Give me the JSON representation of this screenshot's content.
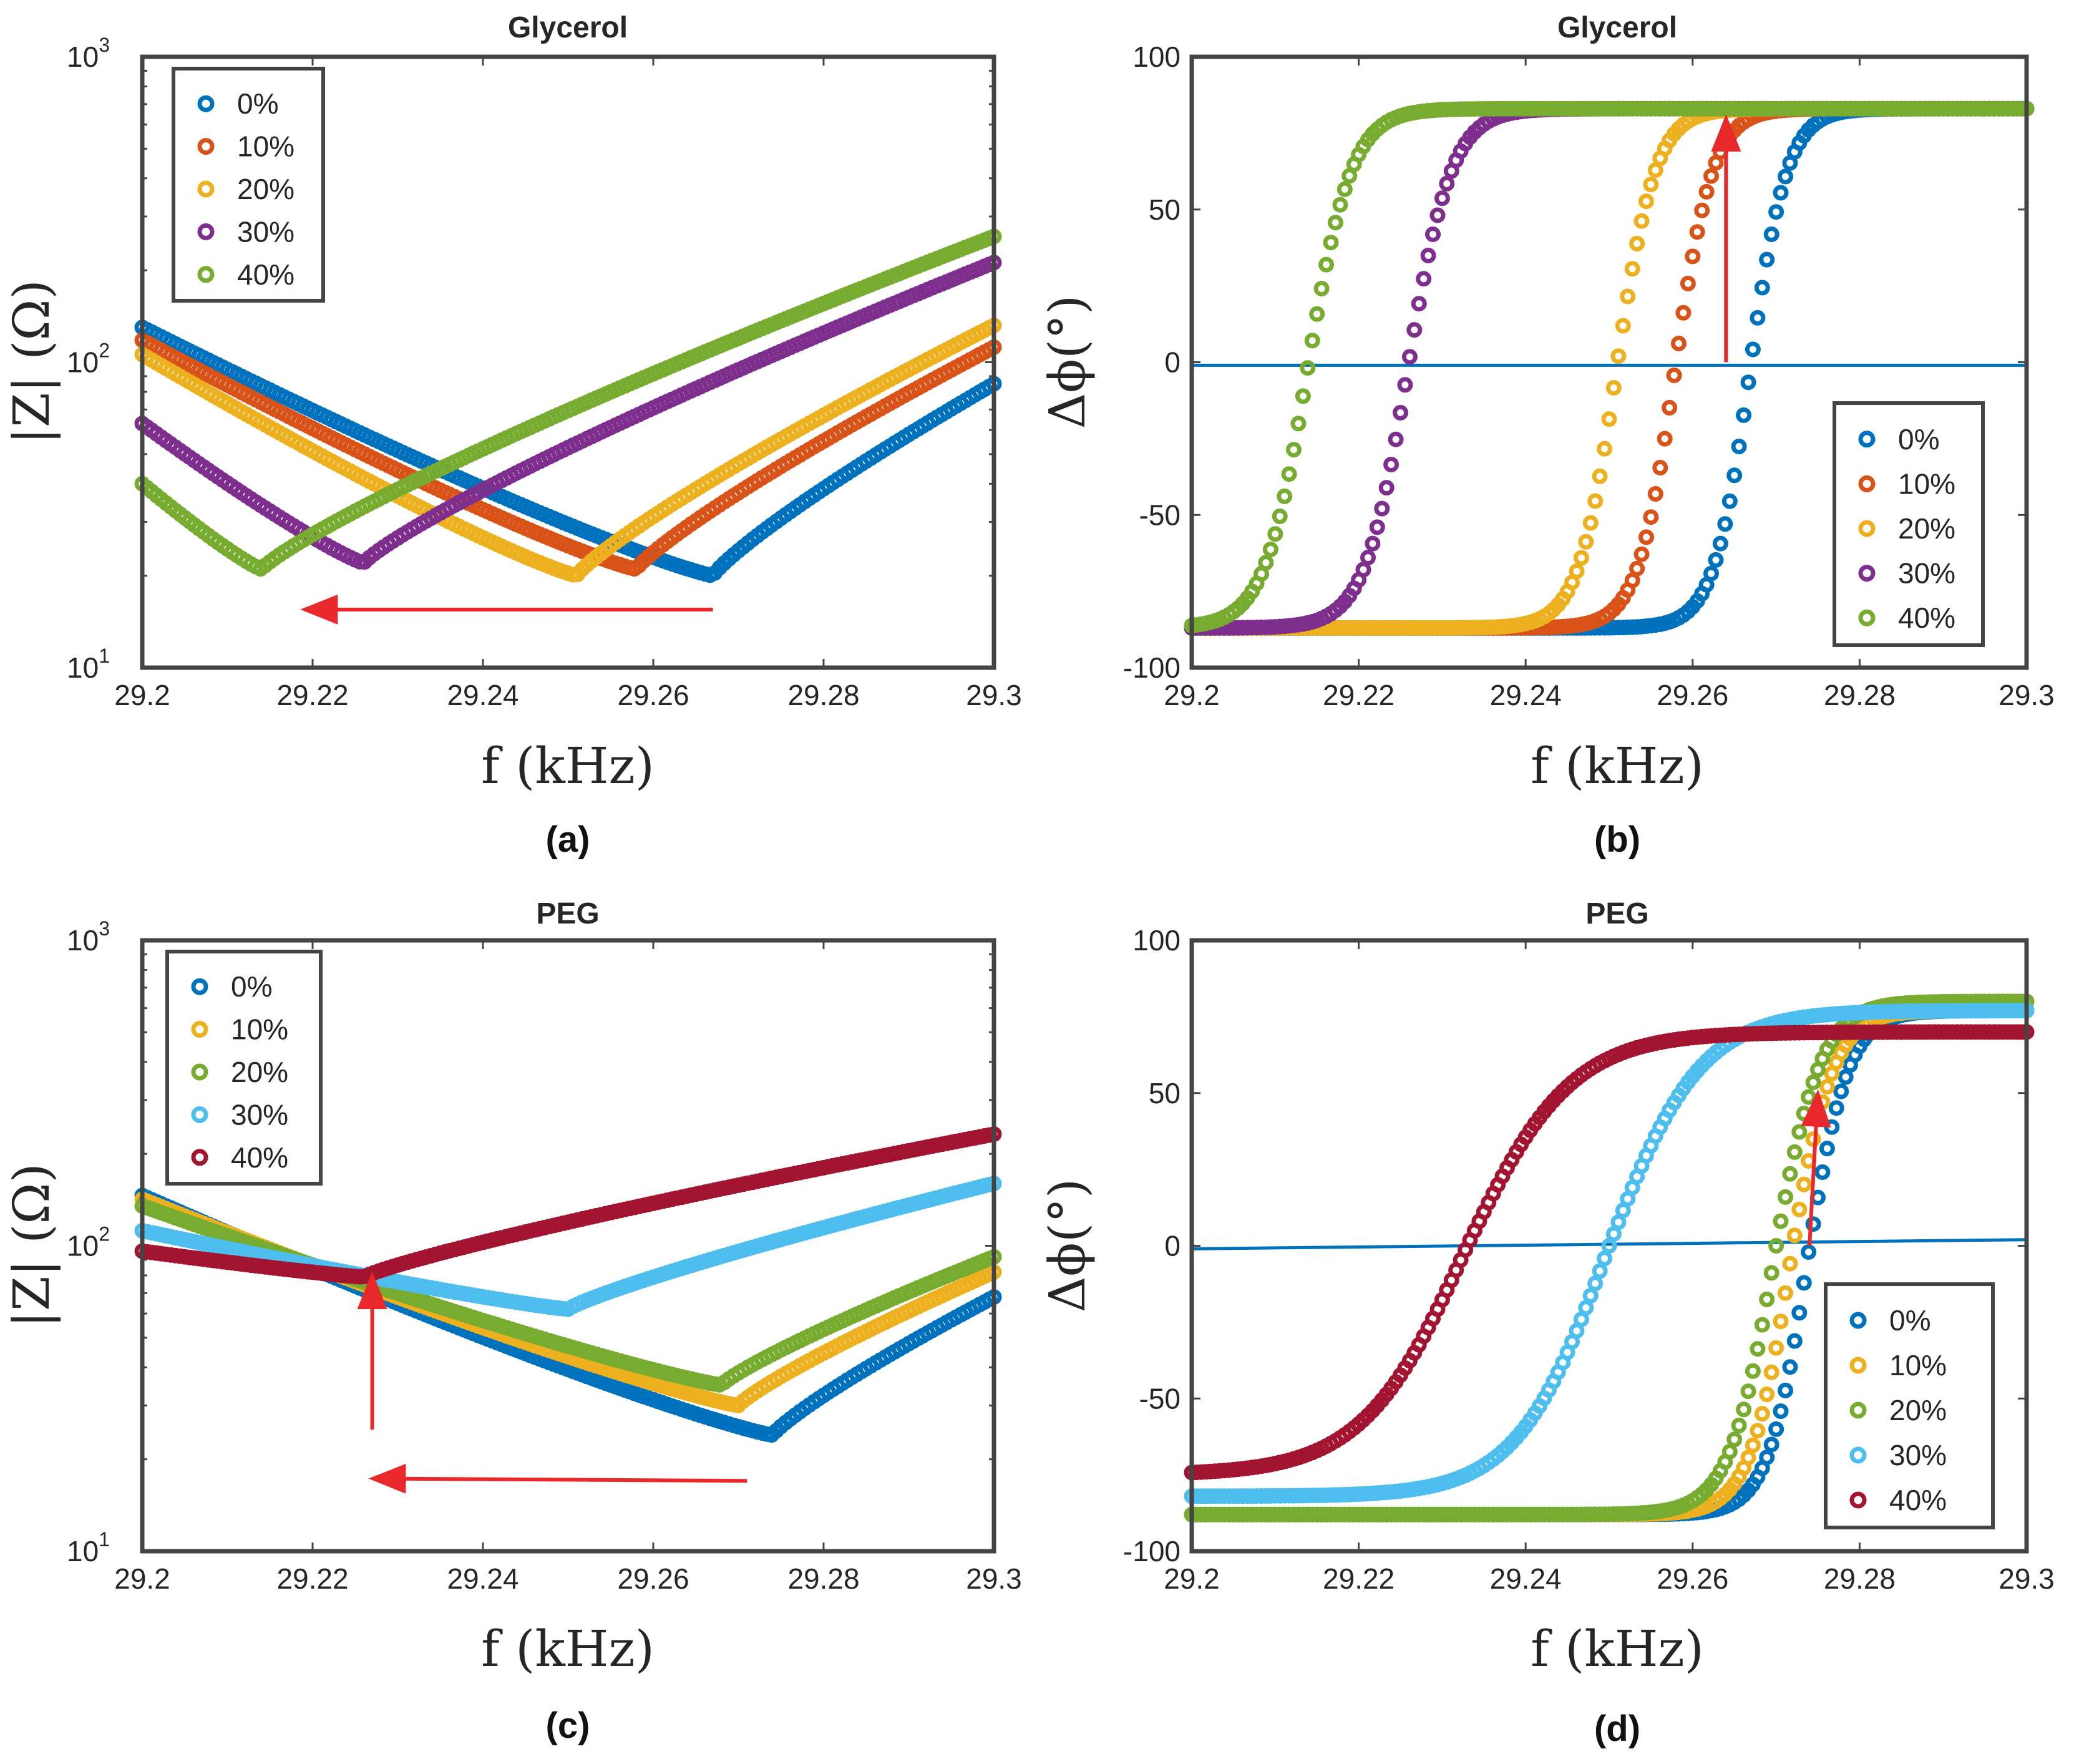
{
  "chart_data": [
    {
      "id": "a",
      "type": "scatter",
      "title": "Glycerol",
      "xlabel": "f (kHz)",
      "ylabel": "|Z| (Ω)",
      "caption": "(a)",
      "xlim": [
        29.2,
        29.3
      ],
      "ylim": [
        10,
        1000
      ],
      "yscale": "log",
      "xticks": [
        {
          "value": 29.2,
          "label": "29.2"
        },
        {
          "value": 29.22,
          "label": "29.22"
        },
        {
          "value": 29.24,
          "label": "29.24"
        },
        {
          "value": 29.26,
          "label": "29.26"
        },
        {
          "value": 29.28,
          "label": "29.28"
        },
        {
          "value": 29.3,
          "label": "29.3"
        }
      ],
      "yticks": [
        {
          "value": 10,
          "base": "10",
          "exp": "1"
        },
        {
          "value": 100,
          "base": "10",
          "exp": "2"
        },
        {
          "value": 1000,
          "base": "10",
          "exp": "3"
        }
      ],
      "legend_position": "top-left",
      "series": [
        {
          "name": "0%",
          "color": "#0072BD",
          "f0": 29.267,
          "zmin": 20,
          "zl": 130,
          "zr": 85
        },
        {
          "name": "10%",
          "color": "#D95319",
          "f0": 29.258,
          "zmin": 21,
          "zl": 118,
          "zr": 112
        },
        {
          "name": "20%",
          "color": "#EDB120",
          "f0": 29.251,
          "zmin": 20,
          "zl": 106,
          "zr": 132
        },
        {
          "name": "30%",
          "color": "#7E2F8E",
          "f0": 29.226,
          "zmin": 22,
          "zl": 63,
          "zr": 212
        },
        {
          "name": "40%",
          "color": "#77AC30",
          "f0": 29.214,
          "zmin": 21,
          "zl": 40,
          "zr": 258
        }
      ],
      "arrows": [
        {
          "from": [
            29.267,
            15.5
          ],
          "to": [
            29.219,
            15.5
          ]
        }
      ]
    },
    {
      "id": "b",
      "type": "scatter",
      "title": "Glycerol",
      "xlabel": "f (kHz)",
      "ylabel": "Δϕ(°)",
      "caption": "(b)",
      "xlim": [
        29.2,
        29.3
      ],
      "ylim": [
        -100,
        100
      ],
      "yscale": "linear",
      "xticks": [
        {
          "value": 29.2,
          "label": "29.2"
        },
        {
          "value": 29.22,
          "label": "29.22"
        },
        {
          "value": 29.24,
          "label": "29.24"
        },
        {
          "value": 29.26,
          "label": "29.26"
        },
        {
          "value": 29.28,
          "label": "29.28"
        },
        {
          "value": 29.3,
          "label": "29.3"
        }
      ],
      "yticks": [
        {
          "value": -100,
          "label": "-100"
        },
        {
          "value": -50,
          "label": "-50"
        },
        {
          "value": 0,
          "label": "0"
        },
        {
          "value": 50,
          "label": "50"
        },
        {
          "value": 100,
          "label": "100"
        }
      ],
      "legend_position": "bottom-right",
      "series": [
        {
          "name": "0%",
          "color": "#0072BD",
          "f0": 29.267,
          "phimin": -87,
          "phimax": 83,
          "w": 0.0044
        },
        {
          "name": "10%",
          "color": "#D95319",
          "f0": 29.258,
          "phimin": -87,
          "phimax": 83,
          "w": 0.0045
        },
        {
          "name": "20%",
          "color": "#EDB120",
          "f0": 29.251,
          "phimin": -87,
          "phimax": 83,
          "w": 0.0046
        },
        {
          "name": "30%",
          "color": "#7E2F8E",
          "f0": 29.226,
          "phimin": -87,
          "phimax": 83,
          "w": 0.0052
        },
        {
          "name": "40%",
          "color": "#77AC30",
          "f0": 29.214,
          "phimin": -87,
          "phimax": 83,
          "w": 0.0052
        }
      ],
      "reference_line": {
        "color": "#0072BD",
        "x": [
          29.2,
          29.3
        ],
        "y": [
          -1,
          -1
        ]
      },
      "arrows": [
        {
          "from": [
            29.264,
            0
          ],
          "to": [
            29.264,
            80
          ]
        }
      ]
    },
    {
      "id": "c",
      "type": "scatter",
      "title": "PEG",
      "xlabel": "f (kHz)",
      "ylabel": "|Z| (Ω)",
      "caption": "(c)",
      "xlim": [
        29.2,
        29.3
      ],
      "ylim": [
        10,
        1000
      ],
      "yscale": "log",
      "xticks": [
        {
          "value": 29.2,
          "label": "29.2"
        },
        {
          "value": 29.22,
          "label": "29.22"
        },
        {
          "value": 29.24,
          "label": "29.24"
        },
        {
          "value": 29.26,
          "label": "29.26"
        },
        {
          "value": 29.28,
          "label": "29.28"
        },
        {
          "value": 29.3,
          "label": "29.3"
        }
      ],
      "yticks": [
        {
          "value": 10,
          "base": "10",
          "exp": "1"
        },
        {
          "value": 100,
          "base": "10",
          "exp": "2"
        },
        {
          "value": 1000,
          "base": "10",
          "exp": "3"
        }
      ],
      "legend_position": "top-left",
      "series": [
        {
          "name": "0%",
          "color": "#0072BD",
          "f0": 29.274,
          "zmin": 24,
          "zl": 146,
          "zr": 68
        },
        {
          "name": "10%",
          "color": "#EDB120",
          "f0": 29.27,
          "zmin": 30,
          "zl": 142,
          "zr": 82
        },
        {
          "name": "20%",
          "color": "#77AC30",
          "f0": 29.268,
          "zmin": 35,
          "zl": 135,
          "zr": 92
        },
        {
          "name": "30%",
          "color": "#4DBEEE",
          "f0": 29.25,
          "zmin": 62,
          "zl": 112,
          "zr": 160
        },
        {
          "name": "40%",
          "color": "#A2142F",
          "f0": 29.226,
          "zmin": 79,
          "zl": 96,
          "zr": 232
        }
      ],
      "arrows": [
        {
          "from": [
            29.227,
            25
          ],
          "to": [
            29.227,
            80
          ]
        },
        {
          "from": [
            29.271,
            17
          ],
          "to": [
            29.227,
            17.3
          ]
        }
      ]
    },
    {
      "id": "d",
      "type": "scatter",
      "title": "PEG",
      "xlabel": "f (kHz)",
      "ylabel": "Δϕ(°)",
      "caption": "(d)",
      "xlim": [
        29.2,
        29.3
      ],
      "ylim": [
        -100,
        100
      ],
      "yscale": "linear",
      "xticks": [
        {
          "value": 29.2,
          "label": "29.2"
        },
        {
          "value": 29.22,
          "label": "29.22"
        },
        {
          "value": 29.24,
          "label": "29.24"
        },
        {
          "value": 29.26,
          "label": "29.26"
        },
        {
          "value": 29.28,
          "label": "29.28"
        },
        {
          "value": 29.3,
          "label": "29.3"
        }
      ],
      "yticks": [
        {
          "value": -100,
          "label": "-100"
        },
        {
          "value": -50,
          "label": "-50"
        },
        {
          "value": 0,
          "label": "0"
        },
        {
          "value": 50,
          "label": "50"
        },
        {
          "value": 100,
          "label": "100"
        }
      ],
      "legend_position": "bottom-right",
      "series": [
        {
          "name": "0%",
          "color": "#0072BD",
          "f0": 29.274,
          "phimin": -88,
          "phimax": 77,
          "w": 0.0048
        },
        {
          "name": "10%",
          "color": "#EDB120",
          "f0": 29.272,
          "phimin": -88,
          "phimax": 77,
          "w": 0.005
        },
        {
          "name": "20%",
          "color": "#77AC30",
          "f0": 29.27,
          "phimin": -88,
          "phimax": 80,
          "w": 0.0055
        },
        {
          "name": "30%",
          "color": "#4DBEEE",
          "f0": 29.25,
          "phimin": -82,
          "phimax": 77,
          "w": 0.011
        },
        {
          "name": "40%",
          "color": "#A2142F",
          "f0": 29.233,
          "phimin": -75,
          "phimax": 70,
          "w": 0.0125
        }
      ],
      "reference_line": {
        "color": "#0072BD",
        "x": [
          29.2,
          29.3
        ],
        "y": [
          -1,
          2
        ]
      },
      "arrows": [
        {
          "from": [
            29.274,
            0
          ],
          "to": [
            29.275,
            50
          ]
        }
      ]
    }
  ],
  "colors": {
    "arrow": "#E8282B",
    "frame": "#444444",
    "text": "#262626"
  }
}
